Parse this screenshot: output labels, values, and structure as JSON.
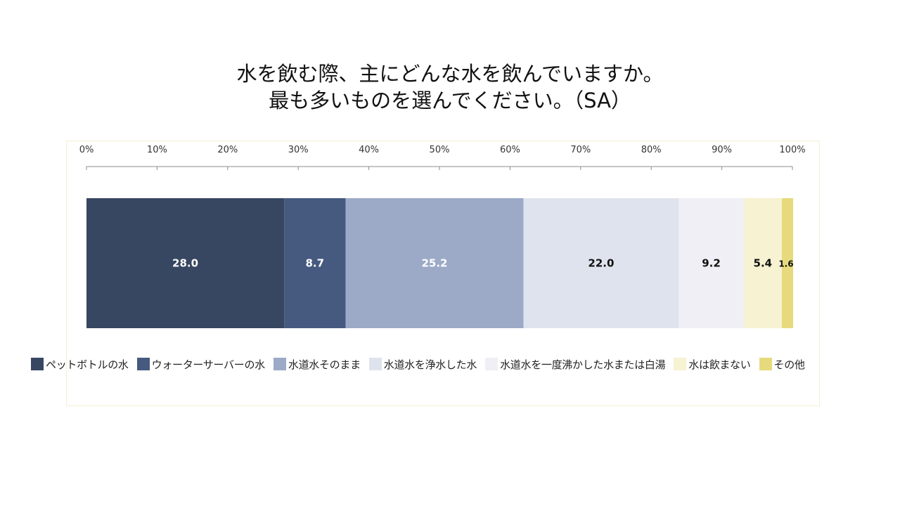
{
  "title": {
    "line1": "水を飲む際、主にどんな水を飲んでいますか。",
    "line2": "最も多いものを選んでください。（SA）"
  },
  "chart_data": {
    "type": "bar",
    "orientation": "horizontal-stacked-100",
    "x_ticks": [
      "0%",
      "10%",
      "20%",
      "30%",
      "40%",
      "50%",
      "60%",
      "70%",
      "80%",
      "90%",
      "100%"
    ],
    "xlim": [
      0,
      100
    ],
    "x_axis_position": "top",
    "grid": false,
    "legend_position": "bottom",
    "series": [
      {
        "name": "ペットボトルの水",
        "value": 28.0,
        "label": "28.0",
        "color": "#374762",
        "label_color": "#ffffff"
      },
      {
        "name": "ウォーターサーバーの水",
        "value": 8.7,
        "label": "8.7",
        "color": "#465a80",
        "label_color": "#ffffff"
      },
      {
        "name": "水道水そのまま",
        "value": 25.2,
        "label": "25.2",
        "color": "#9caac7",
        "label_color": "#ffffff"
      },
      {
        "name": "水道水を浄水した水",
        "value": 22.0,
        "label": "22.0",
        "color": "#dfe3ed",
        "label_color": "#111111"
      },
      {
        "name": "水道水を一度沸かした水または白湯",
        "value": 9.2,
        "label": "9.2",
        "color": "#efeff5",
        "label_color": "#111111"
      },
      {
        "name": "水は飲まない",
        "value": 5.4,
        "label": "5.4",
        "color": "#f6f2d2",
        "label_color": "#111111"
      },
      {
        "name": "その他",
        "value": 1.6,
        "label": "1.6",
        "color": "#e6da7c",
        "label_color": "#111111"
      }
    ]
  }
}
